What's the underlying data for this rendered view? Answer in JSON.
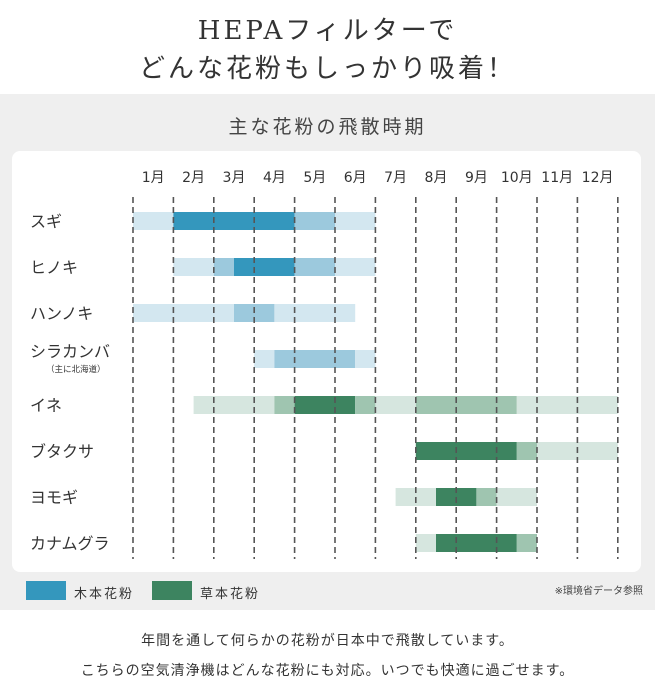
{
  "header": {
    "line1": "HEPAフィルターで",
    "line2": "どんな花粉もしっかり吸着！"
  },
  "section_title": "主な花粉の飛散時期",
  "legend": [
    {
      "label": "木本花粉",
      "color": "#3497bd"
    },
    {
      "label": "草本花粉",
      "color": "#3d8460"
    }
  ],
  "source": "※環境省データ参照",
  "footer": {
    "line1": "年間を通して何らかの花粉が日本中で飛散しています。",
    "line2": "こちらの空気清浄機はどんな花粉にも対応。いつでも快適に過ごせます。"
  },
  "colors": {
    "tree_light": "#d3e7f0",
    "tree_mid": "#9cc9dd",
    "tree_dark": "#3497bd",
    "grass_light": "#d6e6df",
    "grass_mid": "#9fc5b0",
    "grass_dark": "#3d8460"
  },
  "chart_data": {
    "type": "timeline",
    "months": [
      "1月",
      "2月",
      "3月",
      "4月",
      "5月",
      "6月",
      "7月",
      "8月",
      "9月",
      "10月",
      "11月",
      "12月"
    ],
    "intensity_levels": [
      "light",
      "mid",
      "dark"
    ],
    "rows": [
      {
        "name": "スギ",
        "group": "tree",
        "segments": [
          {
            "start": 1.0,
            "end": 2.0,
            "level": "light"
          },
          {
            "start": 2.0,
            "end": 5.0,
            "level": "dark"
          },
          {
            "start": 5.0,
            "end": 6.0,
            "level": "mid"
          },
          {
            "start": 6.0,
            "end": 7.0,
            "level": "light"
          }
        ]
      },
      {
        "name": "ヒノキ",
        "group": "tree",
        "segments": [
          {
            "start": 2.0,
            "end": 3.0,
            "level": "light"
          },
          {
            "start": 3.0,
            "end": 3.5,
            "level": "mid"
          },
          {
            "start": 3.5,
            "end": 5.0,
            "level": "dark"
          },
          {
            "start": 5.0,
            "end": 6.0,
            "level": "mid"
          },
          {
            "start": 6.0,
            "end": 7.0,
            "level": "light"
          }
        ]
      },
      {
        "name": "ハンノキ",
        "group": "tree",
        "segments": [
          {
            "start": 1.0,
            "end": 3.5,
            "level": "light"
          },
          {
            "start": 3.5,
            "end": 4.5,
            "level": "mid"
          },
          {
            "start": 4.5,
            "end": 6.5,
            "level": "light"
          }
        ]
      },
      {
        "name": "シラカンバ",
        "sub": "（主に北海道）",
        "group": "tree",
        "segments": [
          {
            "start": 4.0,
            "end": 4.5,
            "level": "light"
          },
          {
            "start": 4.5,
            "end": 6.5,
            "level": "mid"
          },
          {
            "start": 6.5,
            "end": 7.0,
            "level": "light"
          }
        ]
      },
      {
        "name": "イネ",
        "group": "grass",
        "segments": [
          {
            "start": 2.5,
            "end": 4.5,
            "level": "light"
          },
          {
            "start": 4.5,
            "end": 5.0,
            "level": "mid"
          },
          {
            "start": 5.0,
            "end": 6.5,
            "level": "dark"
          },
          {
            "start": 6.5,
            "end": 7.0,
            "level": "mid"
          },
          {
            "start": 7.0,
            "end": 8.0,
            "level": "light"
          },
          {
            "start": 8.0,
            "end": 10.5,
            "level": "mid"
          },
          {
            "start": 10.5,
            "end": 13.0,
            "level": "light"
          }
        ]
      },
      {
        "name": "ブタクサ",
        "group": "grass",
        "segments": [
          {
            "start": 8.0,
            "end": 10.5,
            "level": "dark"
          },
          {
            "start": 10.5,
            "end": 11.0,
            "level": "mid"
          },
          {
            "start": 11.0,
            "end": 13.0,
            "level": "light"
          }
        ]
      },
      {
        "name": "ヨモギ",
        "group": "grass",
        "segments": [
          {
            "start": 7.5,
            "end": 8.5,
            "level": "light"
          },
          {
            "start": 8.5,
            "end": 9.5,
            "level": "dark"
          },
          {
            "start": 9.5,
            "end": 10.0,
            "level": "mid"
          },
          {
            "start": 10.0,
            "end": 11.0,
            "level": "light"
          }
        ]
      },
      {
        "name": "カナムグラ",
        "group": "grass",
        "segments": [
          {
            "start": 8.0,
            "end": 8.5,
            "level": "light"
          },
          {
            "start": 8.5,
            "end": 10.5,
            "level": "dark"
          },
          {
            "start": 10.5,
            "end": 11.0,
            "level": "mid"
          }
        ]
      }
    ]
  }
}
